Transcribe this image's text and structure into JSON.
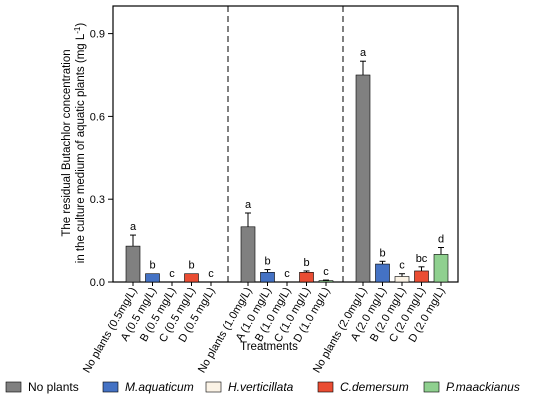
{
  "chart_data": {
    "type": "bar",
    "xlabel": "Treatments",
    "ylabel_line1": "The residual Butachlor concentration",
    "ylabel_line2": "in the culture medium of aquatic plants (mg L",
    "ylabel_sup": "-1",
    "ylabel_close": ")",
    "ylim": [
      0,
      1.0
    ],
    "yticks": [
      0.0,
      0.3,
      0.6,
      0.9
    ],
    "ytick_labels": [
      "0.0",
      "0.3",
      "0.6",
      "0.9"
    ],
    "grid": false,
    "legend_position": "bottom",
    "groups": [
      {
        "bars": [
          {
            "category": "No plants (0.5mg/L)",
            "series": "No plants",
            "value": 0.13,
            "error": 0.04,
            "letter": "a"
          },
          {
            "category": "A (0.5 mg/L)",
            "series": "M.aquaticum",
            "value": 0.03,
            "error": 0.0,
            "letter": "b"
          },
          {
            "category": "B (0.5 mg/L)",
            "series": "H.verticillata",
            "value": 0.0,
            "error": 0.0,
            "letter": "c"
          },
          {
            "category": "C (0.5 mg/L)",
            "series": "C.demersum",
            "value": 0.03,
            "error": 0.0,
            "letter": "b"
          },
          {
            "category": "D (0.5 mg/L)",
            "series": "P.maackianus",
            "value": 0.0,
            "error": 0.0,
            "letter": "c"
          }
        ]
      },
      {
        "bars": [
          {
            "category": "No plants (1.0mg/L)",
            "series": "No plants",
            "value": 0.2,
            "error": 0.05,
            "letter": "a"
          },
          {
            "category": "A (1.0 mg/L)",
            "series": "M.aquaticum",
            "value": 0.035,
            "error": 0.01,
            "letter": "b"
          },
          {
            "category": "B (1.0 mg/L)",
            "series": "H.verticillata",
            "value": 0.0,
            "error": 0.0,
            "letter": "c"
          },
          {
            "category": "C (1.0 mg/L)",
            "series": "C.demersum",
            "value": 0.035,
            "error": 0.005,
            "letter": "b"
          },
          {
            "category": "D (1.0 mg/L)",
            "series": "P.maackianus",
            "value": 0.005,
            "error": 0.002,
            "letter": "c"
          }
        ]
      },
      {
        "bars": [
          {
            "category": "No plants (2.0mg/L)",
            "series": "No plants",
            "value": 0.75,
            "error": 0.05,
            "letter": "a"
          },
          {
            "category": "A (2.0 mg/L)",
            "series": "M.aquaticum",
            "value": 0.065,
            "error": 0.01,
            "letter": "b"
          },
          {
            "category": "B (2.0 mg/L)",
            "series": "H.verticillata",
            "value": 0.02,
            "error": 0.01,
            "letter": "c"
          },
          {
            "category": "C (2.0 mg/L)",
            "series": "C.demersum",
            "value": 0.04,
            "error": 0.015,
            "letter": "bc"
          },
          {
            "category": "D (2.0 mg/L)",
            "series": "P.maackianus",
            "value": 0.1,
            "error": 0.025,
            "letter": "d"
          }
        ]
      }
    ],
    "legend": [
      {
        "name": "No plants",
        "color": "#808080",
        "italic": false
      },
      {
        "name": "M.aquaticum",
        "color": "#4472c4",
        "italic": true
      },
      {
        "name": "H.verticillata",
        "color": "#fbf3e6",
        "italic": true
      },
      {
        "name": "C.demersum",
        "color": "#ea4d33",
        "italic": true
      },
      {
        "name": "P.maackianus",
        "color": "#8fd08f",
        "italic": true
      }
    ]
  }
}
